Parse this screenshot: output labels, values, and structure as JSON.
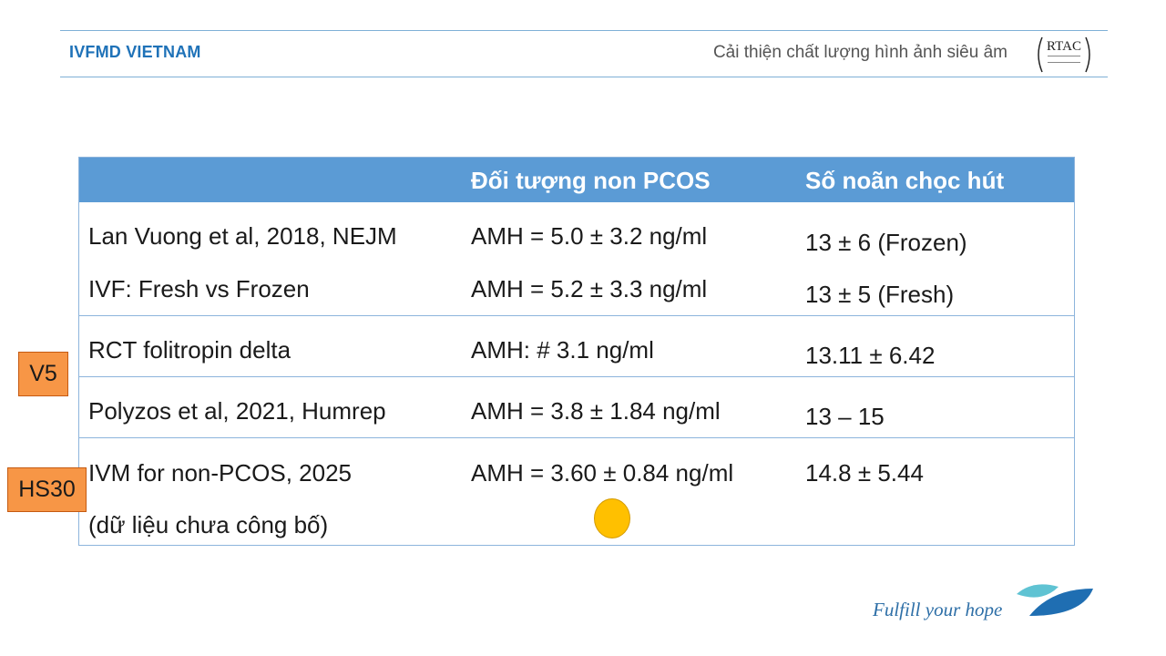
{
  "header": {
    "brand": "IVFMD VIETNAM",
    "title": "Cải thiện chất lượng hình ảnh siêu âm",
    "logo_text": "RTAC"
  },
  "table": {
    "headers": [
      "",
      "Đối tượng non PCOS",
      "Số noãn chọc hút"
    ],
    "rows": [
      {
        "study": [
          "Lan Vuong et al, 2018, NEJM",
          "IVF: Fresh vs Frozen"
        ],
        "amh": [
          "AMH = 5.0 ± 3.2 ng/ml",
          "AMH = 5.2 ± 3.3 ng/ml"
        ],
        "oocytes": [
          "13 ± 6 (Frozen)",
          "13 ± 5 (Fresh)"
        ]
      },
      {
        "study": [
          "RCT folitropin delta"
        ],
        "amh": [
          "AMH: # 3.1 ng/ml"
        ],
        "oocytes": [
          "13.11 ± 6.42"
        ]
      },
      {
        "study": [
          "Polyzos et al, 2021, Humrep"
        ],
        "amh": [
          "AMH = 3.8 ± 1.84 ng/ml"
        ],
        "oocytes": [
          "13 – 15"
        ]
      },
      {
        "study": [
          "IVM for non-PCOS, 2025",
          "(dữ liệu chưa công bố)"
        ],
        "amh": [
          "AMH = 3.60 ± 0.84 ng/ml"
        ],
        "oocytes": [
          "14.8 ± 5.44"
        ]
      }
    ]
  },
  "badges": {
    "v5": "V5",
    "hs30": "HS30"
  },
  "footer": {
    "slogan": "Fulfill your hope"
  },
  "colors": {
    "header_fill": "#5b9bd5",
    "badge_fill": "#f79646",
    "dot_fill": "#ffc000",
    "brand": "#1f72b8"
  }
}
